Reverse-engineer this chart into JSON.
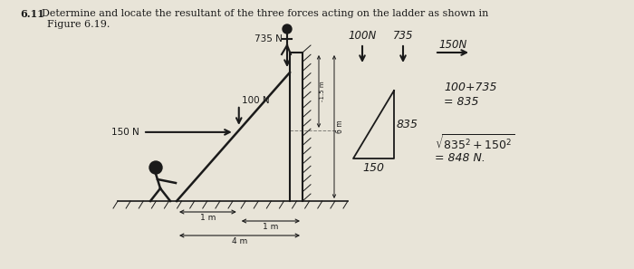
{
  "bg_color": "#cfc9b0",
  "lc": "#1a1a1a",
  "tc": "#1a1a1a",
  "page_bg": "#e8e4d8",
  "title_num": "6.11",
  "title_body": "Determine and locate the resultant of the three forces acting on the ladder as shown in",
  "title_line2": "Figure 6.19.",
  "force_735": "735 N",
  "force_100": "100 N",
  "force_150": "150 N",
  "dim_1m_a": "1 m",
  "dim_1m_b": "1 m",
  "dim_4m": "4 m",
  "dim_15m": "-1.5 m",
  "dim_6m": "6 m",
  "calc_arrows_100": "100N",
  "calc_arrows_735": "735",
  "calc_arrows_150": "150N",
  "calc_eq1": "100+735",
  "calc_eq2": "= 835",
  "calc_835": "835",
  "calc_150": "150",
  "calc_sqrt": "$\\sqrt{835^2+150^2}$",
  "calc_result": "= 848 N."
}
